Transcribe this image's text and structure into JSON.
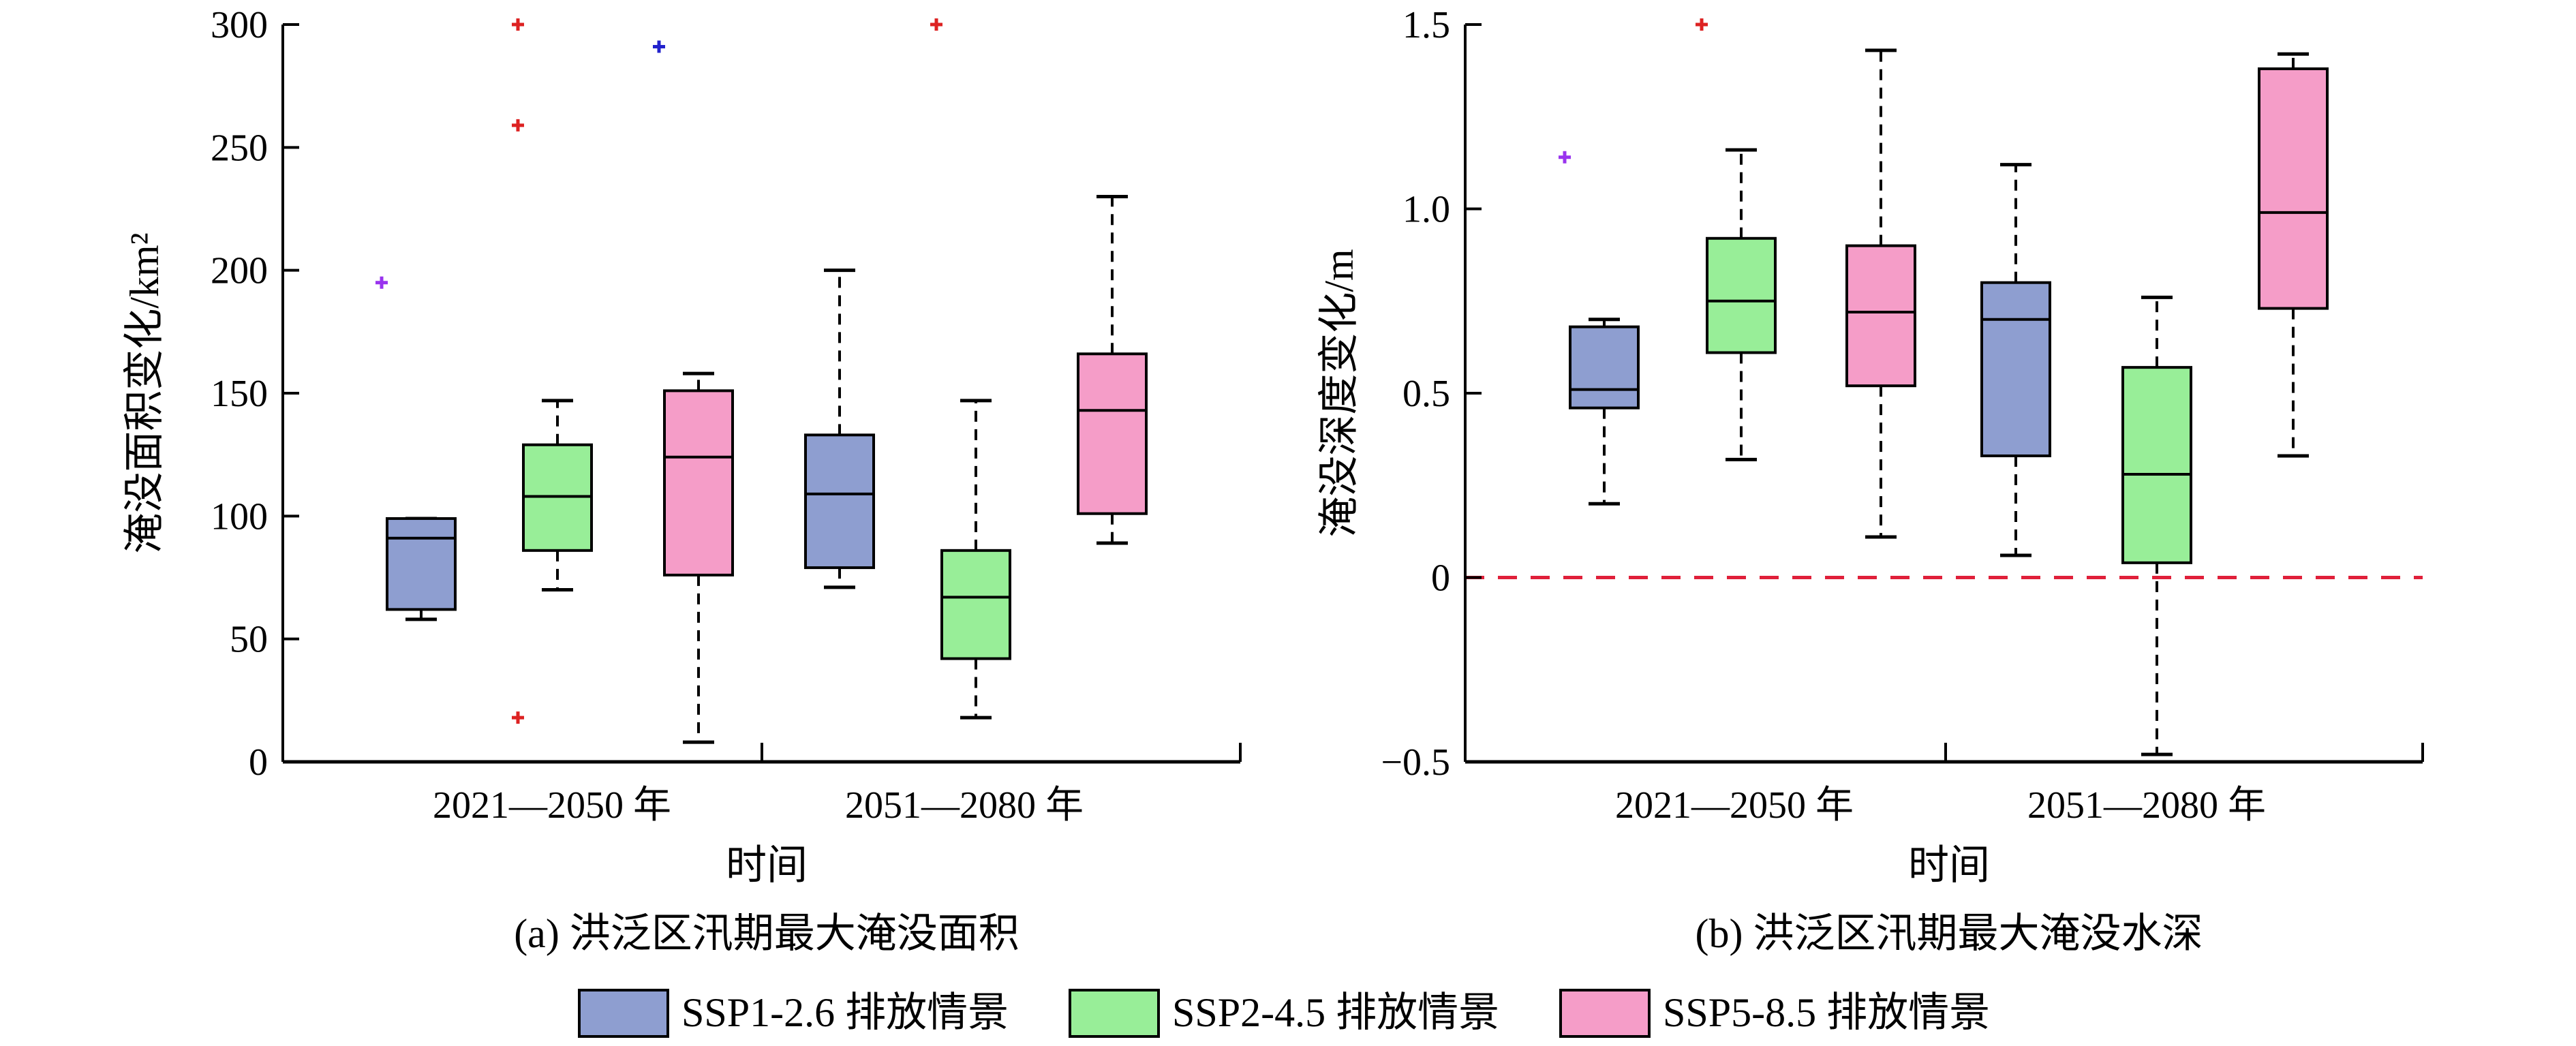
{
  "chart_data": [
    {
      "panel": "a",
      "type": "box",
      "caption": "(a) 洪泛区汛期最大淹没面积",
      "xlabel": "时间",
      "ylabel": "淹没面积变化/km²",
      "ylim": [
        0,
        300
      ],
      "yticks": [
        0,
        50,
        100,
        150,
        200,
        250,
        300
      ],
      "yticklabels": [
        "0",
        "50",
        "100",
        "150",
        "200",
        "250",
        "300"
      ],
      "zero_line": false,
      "groups": [
        "2021—2050 年",
        "2051—2080 年"
      ],
      "series": [
        {
          "name": "SSP1-2.6 排放情景",
          "color": "#8E9ED0",
          "boxes": [
            {
              "group": 0,
              "whislo": 58,
              "q1": 62,
              "med": 91,
              "q3": 99,
              "whishi": 99,
              "fliers": [
                195
              ]
            },
            {
              "group": 1,
              "whislo": 71,
              "q1": 79,
              "med": 109,
              "q3": 133,
              "whishi": 200,
              "fliers": []
            }
          ]
        },
        {
          "name": "SSP2-4.5 排放情景",
          "color": "#98EE98",
          "boxes": [
            {
              "group": 0,
              "whislo": 70,
              "q1": 86,
              "med": 108,
              "q3": 129,
              "whishi": 147,
              "fliers": [
                18,
                259,
                300
              ]
            },
            {
              "group": 1,
              "whislo": 18,
              "q1": 42,
              "med": 67,
              "q3": 86,
              "whishi": 147,
              "fliers": [
                300
              ]
            }
          ]
        },
        {
          "name": "SSP5-8.5 排放情景",
          "color": "#F59DC8",
          "boxes": [
            {
              "group": 0,
              "whislo": 8,
              "q1": 76,
              "med": 124,
              "q3": 151,
              "whishi": 158,
              "fliers": [
                291
              ]
            },
            {
              "group": 1,
              "whislo": 89,
              "q1": 101,
              "med": 143,
              "q3": 166,
              "whishi": 230,
              "fliers": []
            }
          ]
        }
      ]
    },
    {
      "panel": "b",
      "type": "box",
      "caption": "(b) 洪泛区汛期最大淹没水深",
      "xlabel": "时间",
      "ylabel": "淹没深度变化/m",
      "ylim": [
        -0.5,
        1.5
      ],
      "yticks": [
        -0.5,
        0,
        0.5,
        1.0,
        1.5
      ],
      "yticklabels": [
        "−0.5",
        "0",
        "0.5",
        "1.0",
        "1.5"
      ],
      "zero_line": true,
      "groups": [
        "2021—2050 年",
        "2051—2080 年"
      ],
      "series": [
        {
          "name": "SSP1-2.6 排放情景",
          "color": "#8E9ED0",
          "boxes": [
            {
              "group": 0,
              "whislo": 0.2,
              "q1": 0.46,
              "med": 0.51,
              "q3": 0.68,
              "whishi": 0.7,
              "fliers": [
                1.14
              ]
            },
            {
              "group": 1,
              "whislo": 0.06,
              "q1": 0.33,
              "med": 0.7,
              "q3": 0.8,
              "whishi": 1.12,
              "fliers": []
            }
          ]
        },
        {
          "name": "SSP2-4.5 排放情景",
          "color": "#98EE98",
          "boxes": [
            {
              "group": 0,
              "whislo": 0.32,
              "q1": 0.61,
              "med": 0.75,
              "q3": 0.92,
              "whishi": 1.16,
              "fliers": [
                1.5
              ]
            },
            {
              "group": 1,
              "whislo": -0.48,
              "q1": 0.04,
              "med": 0.28,
              "q3": 0.57,
              "whishi": 0.76,
              "fliers": []
            }
          ]
        },
        {
          "name": "SSP5-8.5 排放情景",
          "color": "#F59DC8",
          "boxes": [
            {
              "group": 0,
              "whislo": 0.11,
              "q1": 0.52,
              "med": 0.72,
              "q3": 0.9,
              "whishi": 1.43,
              "fliers": []
            },
            {
              "group": 1,
              "whislo": 0.33,
              "q1": 0.73,
              "med": 0.99,
              "q3": 1.38,
              "whishi": 1.42,
              "fliers": []
            }
          ]
        }
      ]
    }
  ],
  "legend": [
    {
      "label": "SSP1-2.6 排放情景",
      "color": "#8E9ED0"
    },
    {
      "label": "SSP2-4.5 排放情景",
      "color": "#98EE98"
    },
    {
      "label": "SSP5-8.5 排放情景",
      "color": "#F59DC8"
    }
  ],
  "colors": {
    "flier_a": "#DD2222",
    "flier_b": "#2222CC",
    "flier_c": "#9933EE",
    "zero_line": "#E0203A"
  }
}
